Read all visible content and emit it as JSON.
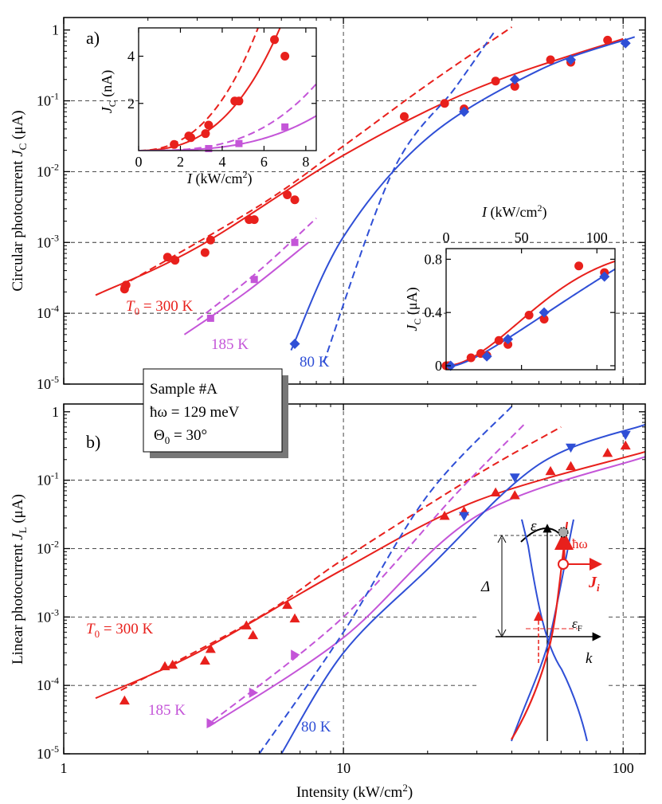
{
  "colors": {
    "red": "#e8201c",
    "magenta": "#c455d8",
    "blue": "#2f4fd6",
    "grid": "#333333",
    "axis": "#000000"
  },
  "x_axis": {
    "label_main": "Intensity (kW/cm",
    "label_sup": "2",
    "label_end": ")",
    "range": [
      1,
      120
    ],
    "ticks": [
      {
        "v": 1,
        "label": "1"
      },
      {
        "v": 10,
        "label": "10"
      },
      {
        "v": 100,
        "label": "100"
      }
    ]
  },
  "panel_a": {
    "label": "a)",
    "ylabel_main": "Circular photocurrent ",
    "ylabel_sym": "J",
    "ylabel_sub": "C",
    "ylabel_unit": " (μA)",
    "yrange": [
      1e-05,
      1.5
    ],
    "ticks": [
      {
        "v": 1,
        "base": "1",
        "exp": ""
      },
      {
        "v": 0.1,
        "base": "10",
        "exp": "-1"
      },
      {
        "v": 0.01,
        "base": "10",
        "exp": "-2"
      },
      {
        "v": 0.001,
        "base": "10",
        "exp": "-3"
      },
      {
        "v": 0.0001,
        "base": "10",
        "exp": "-4"
      },
      {
        "v": 1e-05,
        "base": "10",
        "exp": "-5"
      }
    ],
    "label_300": {
      "pre": "T",
      "sub": "0",
      "post": " = 300 K"
    },
    "label_185": "185 K",
    "label_80": "80 K"
  },
  "panel_b": {
    "label": "b)",
    "ylabel_main": "Linear photocurrent ",
    "ylabel_sym": "J",
    "ylabel_sub": "L",
    "ylabel_unit": " (μA)",
    "yrange": [
      1e-05,
      1.3
    ],
    "ticks": [
      {
        "v": 1,
        "base": "1",
        "exp": ""
      },
      {
        "v": 0.1,
        "base": "10",
        "exp": "-1"
      },
      {
        "v": 0.01,
        "base": "10",
        "exp": "-2"
      },
      {
        "v": 0.001,
        "base": "10",
        "exp": "-3"
      },
      {
        "v": 0.0001,
        "base": "10",
        "exp": "-4"
      },
      {
        "v": 1e-05,
        "base": "10",
        "exp": "-5"
      }
    ],
    "label_300": {
      "pre": "T",
      "sub": "0",
      "post": " = 300 K"
    },
    "label_185": "185 K",
    "label_80": "80 K"
  },
  "sample_box": {
    "line1": "Sample #A",
    "line2": "ħω = 129 meV",
    "line3_pre": "Θ",
    "line3_sub": "0",
    "line3_post": " = 30°"
  },
  "inset_top": {
    "xlabel_pre": "I",
    "xlabel_post": " (kW/cm",
    "xlabel_sup": "2",
    "xlabel_end": ")",
    "ylabel_pre": "J",
    "ylabel_sub": "C",
    "ylabel_post": "  (nA)",
    "xticks": [
      "0",
      "2",
      "4",
      "6",
      "8"
    ],
    "yticks": [
      "2",
      "4"
    ]
  },
  "inset_bottom": {
    "xlabel_pre": "I",
    "xlabel_post": " (kW/cm",
    "xlabel_sup": "2",
    "xlabel_end": ")",
    "ylabel_pre": "J",
    "ylabel_sub": "C",
    "ylabel_post": "  (μA)",
    "xticks": [
      "0",
      "50",
      "100"
    ],
    "yticks": [
      "0",
      "0.4",
      "0.8"
    ]
  },
  "band_diagram": {
    "epsilon": "ε",
    "hw": "ħω",
    "Delta": "Δ",
    "Ji": "J",
    "Ji_sub": "i",
    "eF": "ε",
    "eF_sub": "F",
    "k": "k"
  },
  "chart_data": [
    {
      "type": "scatter",
      "title": "a) Circular photocurrent J_C vs intensity (log-log)",
      "xlabel": "Intensity (kW/cm2)",
      "ylabel": "Circular photocurrent J_C (μA)",
      "xscale": "log",
      "yscale": "log",
      "xlim": [
        1,
        120
      ],
      "ylim": [
        1e-05,
        1.5
      ],
      "series": [
        {
          "name": "T0 = 300 K",
          "color": "red",
          "marker": "circle",
          "points": [
            [
              1.65,
              0.00022
            ],
            [
              1.67,
              0.00025
            ],
            [
              2.35,
              0.00062
            ],
            [
              2.5,
              0.00056
            ],
            [
              3.2,
              0.00072
            ],
            [
              3.35,
              0.00108
            ],
            [
              4.6,
              0.0021
            ],
            [
              4.8,
              0.0021
            ],
            [
              6.3,
              0.0047
            ],
            [
              6.7,
              0.004
            ],
            [
              16.5,
              0.06
            ],
            [
              23,
              0.092
            ],
            [
              27,
              0.077
            ],
            [
              35,
              0.19
            ],
            [
              41,
              0.16
            ],
            [
              55,
              0.38
            ],
            [
              65,
              0.35
            ],
            [
              88,
              0.72
            ]
          ],
          "fit": [
            [
              1.3,
              0.00018
            ],
            [
              3,
              0.00085
            ],
            [
              10,
              0.017
            ],
            [
              30,
              0.15
            ],
            [
              100,
              0.75
            ]
          ],
          "dashed": [
            [
              1.6,
              0.00024
            ],
            [
              5,
              0.0033
            ],
            [
              10,
              0.023
            ],
            [
              20,
              0.17
            ],
            [
              40,
              1.1
            ]
          ]
        },
        {
          "name": "185 K",
          "color": "magenta",
          "marker": "square",
          "points": [
            [
              3.35,
              8.5e-05
            ],
            [
              4.8,
              0.0003
            ],
            [
              6.7,
              0.001
            ]
          ],
          "fit": [
            [
              2.7,
              5e-05
            ],
            [
              4.5,
              0.0002
            ],
            [
              7.5,
              0.001
            ]
          ],
          "dashed": [
            [
              3,
              8e-05
            ],
            [
              5,
              0.0004
            ],
            [
              8,
              0.0022
            ]
          ]
        },
        {
          "name": "80 K",
          "color": "blue",
          "marker": "diamond",
          "points": [
            [
              6.7,
              3.7e-05
            ],
            [
              27,
              0.07
            ],
            [
              41,
              0.2
            ],
            [
              65,
              0.38
            ],
            [
              102,
              0.65
            ]
          ],
          "fit": [
            [
              6.5,
              3e-05
            ],
            [
              10,
              0.0012
            ],
            [
              20,
              0.03
            ],
            [
              50,
              0.27
            ],
            [
              110,
              0.8
            ]
          ],
          "dashed": [
            [
              8.5,
              2e-05
            ],
            [
              15,
              0.01
            ],
            [
              25,
              0.15
            ],
            [
              35,
              1
            ]
          ]
        }
      ]
    },
    {
      "type": "scatter",
      "title": "b) Linear photocurrent J_L vs intensity (log-log)",
      "xlabel": "Intensity (kW/cm2)",
      "ylabel": "Linear photocurrent J_L (μA)",
      "xscale": "log",
      "yscale": "log",
      "xlim": [
        1,
        120
      ],
      "ylim": [
        1e-05,
        1.3
      ],
      "series": [
        {
          "name": "T0 = 300 K",
          "color": "red",
          "marker": "triangle-up",
          "points": [
            [
              1.65,
              6e-05
            ],
            [
              2.3,
              0.00019
            ],
            [
              2.45,
              0.0002
            ],
            [
              3.2,
              0.00023
            ],
            [
              3.35,
              0.00034
            ],
            [
              4.5,
              0.00075
            ],
            [
              4.75,
              0.00054
            ],
            [
              6.3,
              0.0015
            ],
            [
              6.7,
              0.00095
            ],
            [
              23,
              0.03
            ],
            [
              27,
              0.035
            ],
            [
              35,
              0.066
            ],
            [
              41,
              0.06
            ],
            [
              55,
              0.135
            ],
            [
              65,
              0.16
            ],
            [
              88,
              0.25
            ],
            [
              102,
              0.32
            ]
          ],
          "fit": [
            [
              1.3,
              6.5e-05
            ],
            [
              3,
              0.0003
            ],
            [
              10,
              0.005
            ],
            [
              30,
              0.05
            ],
            [
              120,
              0.26
            ]
          ],
          "dashed": [
            [
              1.6,
              8.5e-05
            ],
            [
              5,
              0.001
            ],
            [
              10,
              0.007
            ],
            [
              30,
              0.12
            ],
            [
              60,
              0.6
            ]
          ]
        },
        {
          "name": "185 K",
          "color": "magenta",
          "marker": "triangle-right",
          "points": [
            [
              3.35,
              2.8e-05
            ],
            [
              4.75,
              7.8e-05
            ],
            [
              6.7,
              0.00028
            ]
          ],
          "fit": [
            [
              3.3,
              2.5e-05
            ],
            [
              10,
              0.0005
            ],
            [
              30,
              0.03
            ],
            [
              120,
              0.22
            ]
          ],
          "dashed": [
            [
              3.4,
              3e-05
            ],
            [
              10,
              0.001
            ],
            [
              25,
              0.06
            ],
            [
              45,
              0.7
            ]
          ]
        },
        {
          "name": "80 K",
          "color": "blue",
          "marker": "triangle-down",
          "points": [
            [
              27,
              0.03
            ],
            [
              41,
              0.11
            ],
            [
              65,
              0.3
            ],
            [
              102,
              0.46
            ]
          ],
          "fit": [
            [
              6,
              1e-05
            ],
            [
              10,
              0.0003
            ],
            [
              20,
              0.005
            ],
            [
              50,
              0.17
            ],
            [
              120,
              0.65
            ]
          ],
          "dashed": [
            [
              5,
              1e-05
            ],
            [
              10,
              0.0006
            ],
            [
              20,
              0.06
            ],
            [
              40,
              1.2
            ]
          ]
        }
      ]
    },
    {
      "type": "scatter",
      "title": "Inset: J_C (nA) vs I (kW/cm2), linear scale",
      "xlim": [
        0,
        8.5
      ],
      "ylim": [
        0,
        5.2
      ],
      "series": [
        {
          "name": "300 K",
          "color": "red",
          "points": [
            [
              1.7,
              0.26
            ],
            [
              2.4,
              0.62
            ],
            [
              2.5,
              0.55
            ],
            [
              3.2,
              0.72
            ],
            [
              3.35,
              1.08
            ],
            [
              4.6,
              2.1
            ],
            [
              4.8,
              2.1
            ],
            [
              6.5,
              4.7
            ],
            [
              7,
              4.0
            ]
          ]
        },
        {
          "name": "185 K",
          "color": "magenta",
          "points": [
            [
              3.35,
              0.085
            ],
            [
              4.8,
              0.3
            ],
            [
              7,
              1.0
            ]
          ]
        }
      ]
    },
    {
      "type": "scatter",
      "title": "Inset: J_C (μA) vs I (kW/cm2), linear scale",
      "xlim": [
        0,
        112
      ],
      "ylim": [
        -0.03,
        0.88
      ],
      "series": [
        {
          "name": "300 K",
          "color": "red",
          "points": [
            [
              0,
              0
            ],
            [
              2,
              0.001
            ],
            [
              16.5,
              0.06
            ],
            [
              23,
              0.092
            ],
            [
              27,
              0.077
            ],
            [
              35,
              0.19
            ],
            [
              41,
              0.16
            ],
            [
              55,
              0.38
            ],
            [
              65,
              0.35
            ],
            [
              88,
              0.75
            ],
            [
              105,
              0.7
            ]
          ]
        },
        {
          "name": "80 K",
          "color": "blue",
          "points": [
            [
              3,
              0
            ],
            [
              27,
              0.07
            ],
            [
              41,
              0.2
            ],
            [
              65,
              0.4
            ],
            [
              105,
              0.67
            ]
          ]
        }
      ]
    }
  ]
}
